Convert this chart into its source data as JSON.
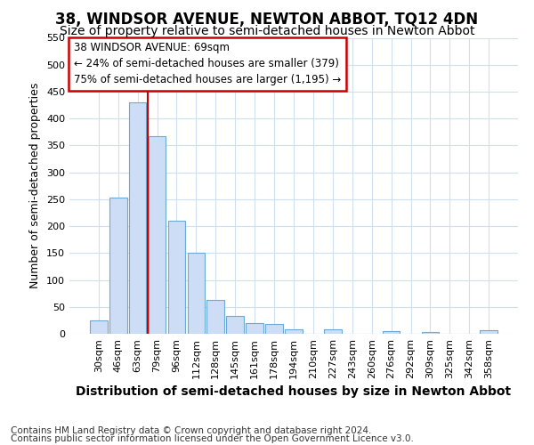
{
  "title": "38, WINDSOR AVENUE, NEWTON ABBOT, TQ12 4DN",
  "subtitle": "Size of property relative to semi-detached houses in Newton Abbot",
  "xlabel": "Distribution of semi-detached houses by size in Newton Abbot",
  "ylabel": "Number of semi-detached properties",
  "categories": [
    "30sqm",
    "46sqm",
    "63sqm",
    "79sqm",
    "96sqm",
    "112sqm",
    "128sqm",
    "145sqm",
    "161sqm",
    "178sqm",
    "194sqm",
    "210sqm",
    "227sqm",
    "243sqm",
    "260sqm",
    "276sqm",
    "292sqm",
    "309sqm",
    "325sqm",
    "342sqm",
    "358sqm"
  ],
  "values": [
    25,
    253,
    430,
    368,
    210,
    151,
    63,
    33,
    20,
    18,
    8,
    0,
    8,
    0,
    0,
    5,
    0,
    3,
    0,
    0,
    6
  ],
  "bar_color": "#ccddf5",
  "bar_edge_color": "#6aaad4",
  "redline_x": 2.5,
  "annotation_line1": "38 WINDSOR AVENUE: 69sqm",
  "annotation_line2": "← 24% of semi-detached houses are smaller (379)",
  "annotation_line3": "75% of semi-detached houses are larger (1,195) →",
  "annotation_box_color": "#ffffff",
  "annotation_box_edge": "#cc0000",
  "redline_color": "#cc0000",
  "ylim": [
    0,
    550
  ],
  "yticks": [
    0,
    50,
    100,
    150,
    200,
    250,
    300,
    350,
    400,
    450,
    500,
    550
  ],
  "footer1": "Contains HM Land Registry data © Crown copyright and database right 2024.",
  "footer2": "Contains public sector information licensed under the Open Government Licence v3.0.",
  "background_color": "#ffffff",
  "plot_bg_color": "#ffffff",
  "grid_color": "#d0dff0",
  "title_fontsize": 12,
  "subtitle_fontsize": 10,
  "xlabel_fontsize": 10,
  "ylabel_fontsize": 9,
  "tick_fontsize": 8,
  "annotation_fontsize": 8.5,
  "footer_fontsize": 7.5
}
